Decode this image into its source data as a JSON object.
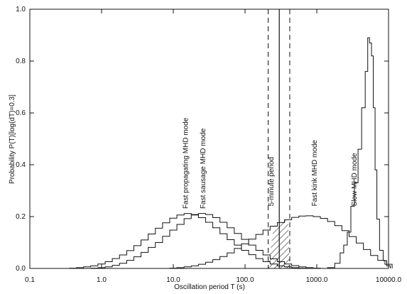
{
  "chart_data": {
    "type": "step-histogram",
    "xlabel": "Oscillation period  T (s)",
    "ylabel": "Probability P(T)[log(dT)=0.3]",
    "xscale": "log",
    "xlim": [
      0.1,
      10000.0
    ],
    "ylim": [
      0.0,
      1.0
    ],
    "x_ticks": [
      0.1,
      1.0,
      10.0,
      100.0,
      1000.0,
      10000.0
    ],
    "x_tick_labels": [
      "0.1",
      "1.0",
      "10.0",
      "100.0",
      "1000.0",
      "10000.0"
    ],
    "y_ticks": [
      0.0,
      0.2,
      0.4,
      0.6,
      0.8,
      1.0
    ],
    "y_tick_labels": [
      "0.0",
      "0.2",
      "0.4",
      "0.6",
      "0.8",
      "1.0"
    ],
    "grid": false,
    "legend": "none",
    "annotations": [
      {
        "text": "Fast propagating MHD mode",
        "x": 16,
        "y": 0.23
      },
      {
        "text": "Fast sausage MHD mode",
        "x": 28,
        "y": 0.23
      },
      {
        "text": "5-minute period",
        "x": 250,
        "y": 0.24
      },
      {
        "text": "Fast kink MHD mode",
        "x": 1000,
        "y": 0.24
      },
      {
        "text": "Slow MHD mode",
        "x": 3600,
        "y": 0.24
      }
    ],
    "vertical_lines": [
      {
        "x": 210,
        "style": "dashed"
      },
      {
        "x": 300,
        "style": "solid"
      },
      {
        "x": 420,
        "style": "dashed"
      }
    ],
    "hatched_band": {
      "x0": 210,
      "x1": 420
    },
    "series": [
      {
        "points": [
          [
            0.8,
            0.001
          ],
          [
            1.0,
            0.003
          ],
          [
            1.26,
            0.006
          ],
          [
            1.58,
            0.012
          ],
          [
            2.0,
            0.02
          ],
          [
            2.51,
            0.031
          ],
          [
            3.16,
            0.045
          ],
          [
            3.98,
            0.062
          ],
          [
            5.01,
            0.081
          ],
          [
            6.31,
            0.1
          ],
          [
            7.94,
            0.124
          ],
          [
            10.0,
            0.148
          ],
          [
            12.59,
            0.17
          ],
          [
            15.85,
            0.192
          ],
          [
            19.95,
            0.206
          ],
          [
            25.12,
            0.212
          ],
          [
            31.62,
            0.208
          ],
          [
            39.81,
            0.196
          ],
          [
            50.12,
            0.178
          ],
          [
            63.1,
            0.157
          ],
          [
            79.43,
            0.135
          ],
          [
            100.0,
            0.112
          ],
          [
            125.9,
            0.09
          ],
          [
            158.5,
            0.07
          ],
          [
            199.5,
            0.052
          ],
          [
            251.2,
            0.037
          ],
          [
            316.2,
            0.026
          ],
          [
            398.1,
            0.017
          ],
          [
            501.2,
            0.011
          ],
          [
            631.0,
            0.006
          ],
          [
            794.3,
            0.003
          ],
          [
            1000.0,
            0.001
          ]
        ]
      },
      {
        "points": [
          [
            0.4,
            0.001
          ],
          [
            0.5,
            0.003
          ],
          [
            0.63,
            0.006
          ],
          [
            0.79,
            0.01
          ],
          [
            1.0,
            0.017
          ],
          [
            1.26,
            0.026
          ],
          [
            1.58,
            0.038
          ],
          [
            2.0,
            0.052
          ],
          [
            2.51,
            0.069
          ],
          [
            3.16,
            0.088
          ],
          [
            3.98,
            0.11
          ],
          [
            5.01,
            0.133
          ],
          [
            6.31,
            0.155
          ],
          [
            7.94,
            0.176
          ],
          [
            10.0,
            0.194
          ],
          [
            12.59,
            0.206
          ],
          [
            15.85,
            0.212
          ],
          [
            19.95,
            0.208
          ],
          [
            25.12,
            0.196
          ],
          [
            31.62,
            0.178
          ],
          [
            39.81,
            0.157
          ],
          [
            50.12,
            0.134
          ],
          [
            63.1,
            0.111
          ],
          [
            79.43,
            0.09
          ],
          [
            100.0,
            0.07
          ],
          [
            125.9,
            0.053
          ],
          [
            158.5,
            0.038
          ],
          [
            199.5,
            0.026
          ],
          [
            251.2,
            0.017
          ],
          [
            316.2,
            0.01
          ],
          [
            398.1,
            0.006
          ],
          [
            501.2,
            0.003
          ],
          [
            631.0,
            0.001
          ]
        ]
      },
      {
        "points": [
          [
            10.0,
            0.001
          ],
          [
            12.59,
            0.003
          ],
          [
            15.85,
            0.006
          ],
          [
            19.95,
            0.01
          ],
          [
            25.12,
            0.016
          ],
          [
            31.62,
            0.024
          ],
          [
            39.81,
            0.034
          ],
          [
            50.12,
            0.046
          ],
          [
            63.1,
            0.06
          ],
          [
            79.43,
            0.077
          ],
          [
            100.0,
            0.095
          ],
          [
            125.9,
            0.113
          ],
          [
            158.5,
            0.131
          ],
          [
            199.5,
            0.148
          ],
          [
            251.2,
            0.163
          ],
          [
            316.2,
            0.177
          ],
          [
            398.1,
            0.188
          ],
          [
            501.2,
            0.197
          ],
          [
            631.0,
            0.202
          ],
          [
            794.3,
            0.203
          ],
          [
            1000.0,
            0.2
          ],
          [
            1259.0,
            0.193
          ],
          [
            1585.0,
            0.181
          ],
          [
            1995.0,
            0.165
          ],
          [
            2512.0,
            0.146
          ],
          [
            3162.0,
            0.123
          ],
          [
            3981.0,
            0.098
          ],
          [
            5012.0,
            0.073
          ],
          [
            6310.0,
            0.05
          ],
          [
            7943.0,
            0.031
          ],
          [
            10000.0,
            0.016
          ]
        ]
      },
      {
        "points": [
          [
            1585.0,
            0.003
          ],
          [
            1995.0,
            0.02
          ],
          [
            2239.0,
            0.06
          ],
          [
            2512.0,
            0.09
          ],
          [
            2818.0,
            0.14
          ],
          [
            3162.0,
            0.24
          ],
          [
            3548.0,
            0.33
          ],
          [
            3981.0,
            0.46
          ],
          [
            4467.0,
            0.62
          ],
          [
            5012.0,
            0.76
          ],
          [
            5248.0,
            0.89
          ],
          [
            5623.0,
            0.87
          ],
          [
            5957.0,
            0.82
          ],
          [
            6310.0,
            0.62
          ],
          [
            6683.0,
            0.38
          ],
          [
            7079.0,
            0.19
          ],
          [
            7943.0,
            0.07
          ],
          [
            8913.0,
            0.03
          ],
          [
            10000.0,
            0.01
          ]
        ]
      }
    ]
  }
}
